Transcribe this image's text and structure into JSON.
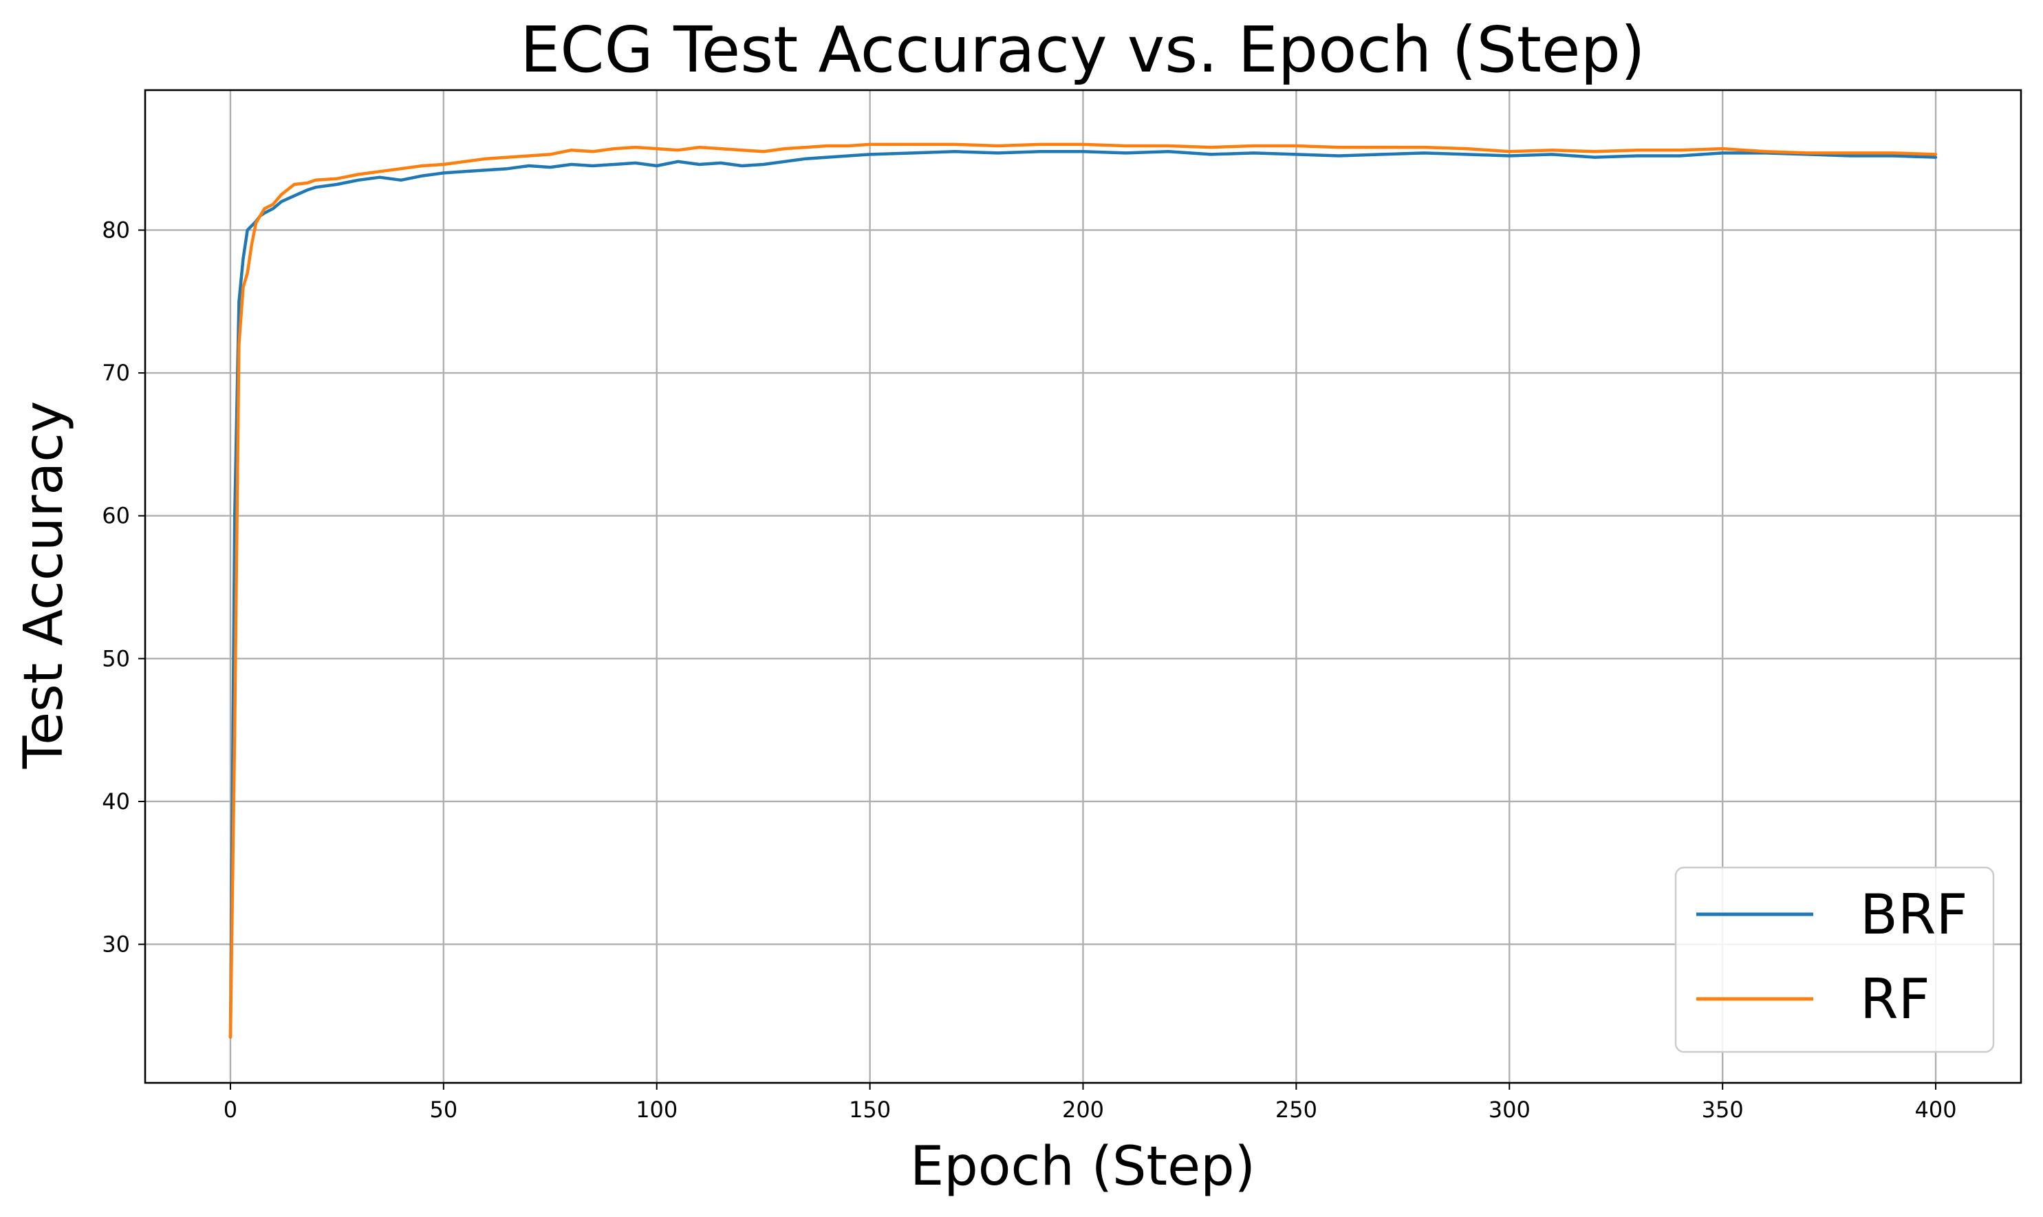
{
  "chart_data": {
    "type": "line",
    "title": "ECG Test Accuracy vs. Epoch (Step)",
    "xlabel": "Epoch (Step)",
    "ylabel": "Test Accuracy",
    "xlim": [
      -20,
      420
    ],
    "ylim": [
      20.3,
      89.8
    ],
    "xticks": [
      0,
      50,
      100,
      150,
      200,
      250,
      300,
      350,
      400
    ],
    "yticks": [
      30,
      40,
      50,
      60,
      70,
      80
    ],
    "grid": true,
    "legend_position": "lower-right",
    "series": [
      {
        "name": "BRF",
        "color": "#1f77b4",
        "x": [
          0,
          1,
          2,
          3,
          4,
          5,
          6,
          7,
          8,
          10,
          12,
          15,
          18,
          20,
          25,
          30,
          35,
          40,
          45,
          50,
          55,
          60,
          65,
          70,
          75,
          80,
          85,
          90,
          95,
          100,
          105,
          110,
          115,
          120,
          125,
          130,
          135,
          140,
          145,
          150,
          160,
          170,
          180,
          190,
          200,
          210,
          220,
          230,
          240,
          250,
          260,
          270,
          280,
          290,
          300,
          310,
          320,
          330,
          340,
          350,
          360,
          370,
          380,
          390,
          400
        ],
        "y": [
          23.5,
          60,
          75,
          78,
          80,
          80.3,
          80.6,
          81,
          81.2,
          81.5,
          82,
          82.4,
          82.8,
          83,
          83.2,
          83.5,
          83.7,
          83.5,
          83.8,
          84,
          84.1,
          84.2,
          84.3,
          84.5,
          84.4,
          84.6,
          84.5,
          84.6,
          84.7,
          84.5,
          84.8,
          84.6,
          84.7,
          84.5,
          84.6,
          84.8,
          85,
          85.1,
          85.2,
          85.3,
          85.4,
          85.5,
          85.4,
          85.5,
          85.5,
          85.4,
          85.5,
          85.3,
          85.4,
          85.3,
          85.2,
          85.3,
          85.4,
          85.3,
          85.2,
          85.3,
          85.1,
          85.2,
          85.2,
          85.4,
          85.4,
          85.3,
          85.2,
          85.2,
          85.1
        ]
      },
      {
        "name": "RF",
        "color": "#ff7f0e",
        "x": [
          0,
          1,
          2,
          3,
          4,
          5,
          6,
          7,
          8,
          10,
          12,
          15,
          18,
          20,
          25,
          30,
          35,
          40,
          45,
          50,
          55,
          60,
          65,
          70,
          75,
          80,
          85,
          90,
          95,
          100,
          105,
          110,
          115,
          120,
          125,
          130,
          135,
          140,
          145,
          150,
          160,
          170,
          180,
          190,
          200,
          210,
          220,
          230,
          240,
          250,
          260,
          270,
          280,
          290,
          300,
          310,
          320,
          330,
          340,
          350,
          360,
          370,
          380,
          390,
          400
        ],
        "y": [
          23.5,
          45,
          72,
          76,
          77,
          79,
          80.5,
          81,
          81.5,
          81.8,
          82.5,
          83.2,
          83.3,
          83.5,
          83.6,
          83.9,
          84.1,
          84.3,
          84.5,
          84.6,
          84.8,
          85,
          85.1,
          85.2,
          85.3,
          85.6,
          85.5,
          85.7,
          85.8,
          85.7,
          85.6,
          85.8,
          85.7,
          85.6,
          85.5,
          85.7,
          85.8,
          85.9,
          85.9,
          86,
          86,
          86,
          85.9,
          86,
          86,
          85.9,
          85.9,
          85.8,
          85.9,
          85.9,
          85.8,
          85.8,
          85.8,
          85.7,
          85.5,
          85.6,
          85.5,
          85.6,
          85.6,
          85.7,
          85.5,
          85.4,
          85.4,
          85.4,
          85.3
        ]
      }
    ]
  }
}
